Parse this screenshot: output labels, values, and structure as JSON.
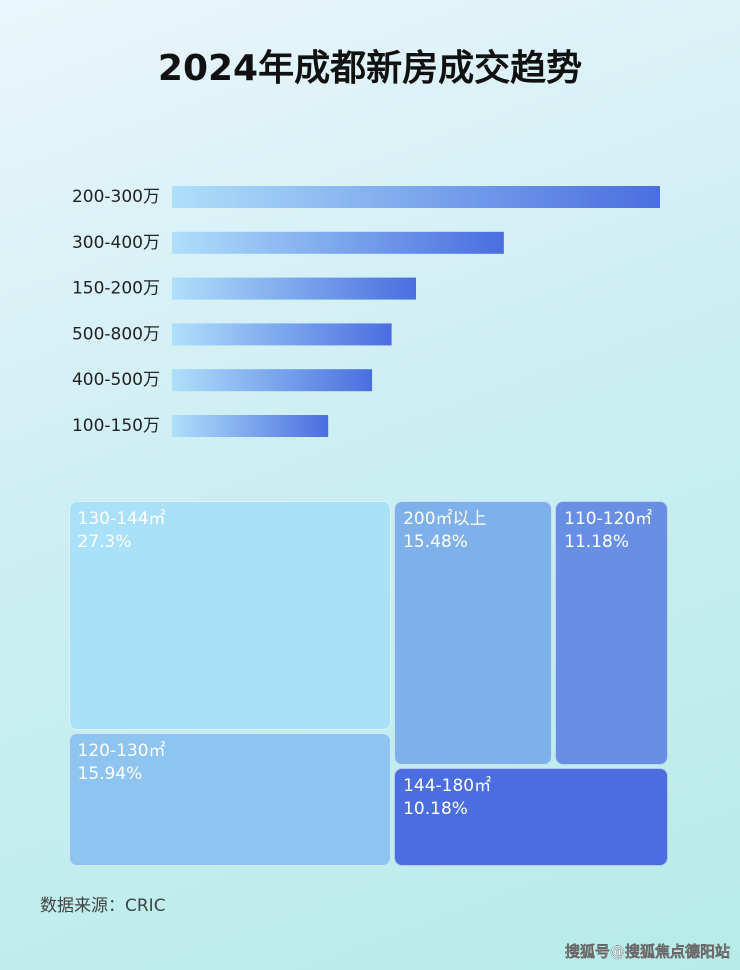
{
  "title": "2024年成都新房成交趋势",
  "chart_data": [
    {
      "type": "bar",
      "orientation": "horizontal",
      "categories": [
        "200-300万",
        "300-400万",
        "150-200万",
        "500-800万",
        "400-500万",
        "100-150万"
      ],
      "values": [
        100,
        68,
        50,
        45,
        41,
        32
      ],
      "xlim": [
        0,
        100
      ],
      "color": [
        "#aee0fa",
        "#4a6ee0"
      ]
    },
    {
      "type": "treemap",
      "labels": [
        "130-144㎡",
        "120-130㎡",
        "200㎡以上",
        "110-120㎡",
        "144-180㎡"
      ],
      "values": [
        27.3,
        15.94,
        15.48,
        11.18,
        10.18
      ],
      "value_labels": [
        "27.3%",
        "15.94%",
        "15.48%",
        "11.18%",
        "10.18%"
      ],
      "colors": [
        "#a9e1f8",
        "#8ec4f0",
        "#7eb0ea",
        "#6790e5",
        "#4a6ee0"
      ]
    }
  ],
  "source": "数据来源：CRIC",
  "watermark": "搜狐号@搜狐焦点德阳站"
}
